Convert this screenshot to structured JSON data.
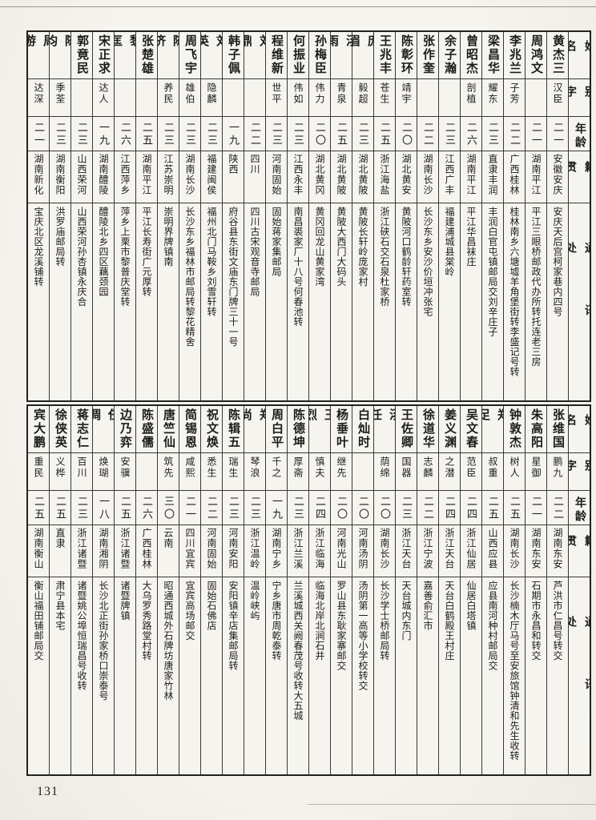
{
  "page_number": "131",
  "colors": {
    "paper": "#f6f4ee",
    "ink": "#1c1c1c",
    "border": "#3a3834"
  },
  "headers": {
    "name": "姓名",
    "courtesy": "别字",
    "age": "年龄",
    "origin": "籍贯",
    "address": "通讯处"
  },
  "tables": [
    {
      "entries": [
        {
          "name": "黄杰三",
          "courtesy": "汉臣",
          "age": "二一",
          "origin": "安徽安庆",
          "address": "安庆天后宫柯家巷内四号"
        },
        {
          "name": "周鸿文",
          "courtesy": "",
          "age": "二一",
          "origin": "湖南平江",
          "address": "平江三眼桥邮政代办所转托连老三房"
        },
        {
          "name": "李兆兰",
          "courtesy": "子芳",
          "age": "二二",
          "origin": "广西桂林",
          "address": "桂林南乡六塘墟羊角堡街转李盛记号转"
        },
        {
          "name": "梁昌华",
          "courtesy": "耀东",
          "age": "二三",
          "origin": "直隶丰润",
          "address": "丰润白官屯镇邮局交刘辛庄子"
        },
        {
          "name": "曾昭杰",
          "courtesy": "剖植",
          "age": "二六",
          "origin": "湖南平江",
          "address": "平江华昌袜庄"
        },
        {
          "name": "余子瀚",
          "courtesy": "",
          "age": "二三",
          "origin": "江西广丰",
          "address": "福建浦城县棠岭"
        },
        {
          "name": "张作奎",
          "courtesy": "",
          "age": "二二",
          "origin": "湖南长沙",
          "address": "长沙东乡安沙价垣冲张宅"
        },
        {
          "name": "陈彰环",
          "courtesy": "靖宇",
          "age": "二〇",
          "origin": "湖北黄安",
          "address": "黄陂河口鹤龄轩药室转"
        },
        {
          "name": "王兆丰",
          "courtesy": "苍生",
          "age": "二五",
          "origin": "浙江海盐",
          "address": "浙江硖石交石泉杜家桥"
        },
        {
          "name": "庞眉",
          "courtesy": "毅超",
          "age": "二三",
          "origin": "湖北黄陂",
          "address": "黄陂长轩岭庞家村"
        },
        {
          "name": "汤雨",
          "courtesy": "青泉",
          "age": "二五",
          "origin": "湖北黄陂",
          "address": "黄陂大西门大码头"
        },
        {
          "name": "孙梅臣",
          "courtesy": "伟力",
          "age": "二〇",
          "origin": "湖北黄冈",
          "address": "黄冈回龙山黄家湾"
        },
        {
          "name": "何振业",
          "courtesy": "伟如",
          "age": "二三",
          "origin": "江西永丰",
          "address": "南昌裘家厂十八号何春池转"
        },
        {
          "name": "程维新",
          "courtesy": "世平",
          "age": "二三",
          "origin": "河南固始",
          "address": "固始蒋家集邮局"
        },
        {
          "name": "刘鼎",
          "courtesy": "",
          "age": "二二",
          "origin": "四川",
          "address": "四川古宋观音寺邮局"
        },
        {
          "name": "韩子佩",
          "courtesy": "",
          "age": "一九",
          "origin": "陕西",
          "address": "府谷县东街文庙东门牌三十一号"
        },
        {
          "name": "刘英",
          "courtesy": "隐麟",
          "age": "二三",
          "origin": "福建闽侯",
          "address": "福州北门马鞍乡刘雪轩转"
        },
        {
          "name": "周飞宇",
          "courtesy": "雄伯",
          "age": "二三",
          "origin": "湖南长沙",
          "address": "长沙东乡福林市邮局转黎花精舍"
        },
        {
          "name": "陈济",
          "courtesy": "养民",
          "age": "二三",
          "origin": "江苏崇明",
          "address": "崇明界牌镇南"
        },
        {
          "name": "张楚雄",
          "courtesy": "",
          "age": "二五",
          "origin": "湖南平江",
          "address": "平江长寿街广元厚转"
        },
        {
          "name": "黎匡",
          "courtesy": "",
          "age": "二六",
          "origin": "江西萍乡",
          "address": "萍乡上栗市黎普庆堂转"
        },
        {
          "name": "宋正求",
          "courtesy": "达人",
          "age": "一九",
          "origin": "湖南醴陵",
          "address": "醴陵北乡四区藕颈园"
        },
        {
          "name": "郭竟民",
          "courtesy": "",
          "age": "二三",
          "origin": "山西荣河",
          "address": "山西荣河孙杏镇永庆合"
        },
        {
          "name": "陈均",
          "courtesy": "季荃",
          "age": "二三",
          "origin": "湖南衡阳",
          "address": "洪罗庙邮局转"
        },
        {
          "name": "周游",
          "courtesy": "达深",
          "age": "二一",
          "origin": "湖南新化",
          "address": "宝庆北区龙溪铺转"
        }
      ]
    },
    {
      "entries": [
        {
          "name": "张维国",
          "courtesy": "鹏九",
          "age": "二二",
          "origin": "湖南东安",
          "address": "芦洪市仁昌号转交"
        },
        {
          "name": "朱高阳",
          "courtesy": "星御",
          "age": "二一",
          "origin": "湖南东安",
          "address": "石期市永昌和转交"
        },
        {
          "name": "钟敦杰",
          "courtesy": "树人",
          "age": "二五",
          "origin": "湖南长沙",
          "address": "长沙楠木厅马号至安旅馆钟清和先生收转"
        },
        {
          "name": "郑足",
          "courtesy": "叔重",
          "age": "二五",
          "origin": "山西应县",
          "address": "应县南河种村邮局交"
        },
        {
          "name": "吴文春",
          "courtesy": "范臣",
          "age": "二四",
          "origin": "浙江仙居",
          "address": "仙居白塔镇"
        },
        {
          "name": "姜义渊",
          "courtesy": "之潜",
          "age": "二四",
          "origin": "浙江天台",
          "address": "天台白鹤殿王村庄"
        },
        {
          "name": "徐道华",
          "courtesy": "志麟",
          "age": "二二",
          "origin": "浙江宁波",
          "address": "嘉善俞汇市"
        },
        {
          "name": "王佐卿",
          "courtesy": "国器",
          "age": "二三",
          "origin": "浙江天台",
          "address": "天台城内东门"
        },
        {
          "name": "汤任",
          "courtesy": "荫绵",
          "age": "二〇",
          "origin": "湖南长沙",
          "address": "长沙学士桥邮局转"
        },
        {
          "name": "白灿时",
          "courtesy": "",
          "age": "二〇",
          "origin": "河南汤阴",
          "address": "汤阴第一高等小学校转交"
        },
        {
          "name": "杨垂叶",
          "courtesy": "继先",
          "age": "二〇",
          "origin": "河南光山",
          "address": "罗山县东耿家寨邮交"
        },
        {
          "name": "王烈",
          "courtesy": "慎夫",
          "age": "二四",
          "origin": "浙江临海",
          "address": "临海北岸北涧石井"
        },
        {
          "name": "陈德坤",
          "courtesy": "厚斋",
          "age": "二三",
          "origin": "浙江兰溪",
          "address": "兰溪城西关阙春茂号收转大五城"
        },
        {
          "name": "周白平",
          "courtesy": "千之",
          "age": "一九",
          "origin": "湖南宁乡",
          "address": "宁乡唐市周乾泰转"
        },
        {
          "name": "郑尚",
          "courtesy": "琴浪",
          "age": "二三",
          "origin": "浙江温岭",
          "address": "温岭峡屿"
        },
        {
          "name": "陈辑五",
          "courtesy": "瑞生",
          "age": "二三",
          "origin": "河南安阳",
          "address": "安阳镇辛店集邮局转"
        },
        {
          "name": "祝文焕",
          "courtesy": "悉生",
          "age": "二二",
          "origin": "河南固始",
          "address": "固始石佛店"
        },
        {
          "name": "简锡恩",
          "courtesy": "咸熙",
          "age": "二一",
          "origin": "四川宜宾",
          "address": "宜宾高场邮交"
        },
        {
          "name": "唐竺仙",
          "courtesy": "筑先",
          "age": "三〇",
          "origin": "云南",
          "address": "昭通西城外石牌坊唐家竹林"
        },
        {
          "name": "陈盛儒",
          "courtesy": "",
          "age": "二六",
          "origin": "广西桂林",
          "address": "大乌罗秀路堂村转"
        },
        {
          "name": "边乃弈",
          "courtesy": "安骥",
          "age": "二五",
          "origin": "浙江诸暨",
          "address": "诸暨牌镇"
        },
        {
          "name": "任倜",
          "courtesy": "焕瑚",
          "age": "一八",
          "origin": "湖南湘阴",
          "address": "长沙北正街孙家桥口崇泰号"
        },
        {
          "name": "蒋志仁",
          "courtesy": "百川",
          "age": "二三",
          "origin": "浙江诸暨",
          "address": "诸暨姚公埠恒瑞昌号收转"
        },
        {
          "name": "徐侠英",
          "courtesy": "义桦",
          "age": "二五",
          "origin": "直隶",
          "address": "肃宁县本宅"
        },
        {
          "name": "宾大鹏",
          "courtesy": "重民",
          "age": "二五",
          "origin": "湖南衡山",
          "address": "衡山福田铺邮局交"
        }
      ]
    }
  ]
}
